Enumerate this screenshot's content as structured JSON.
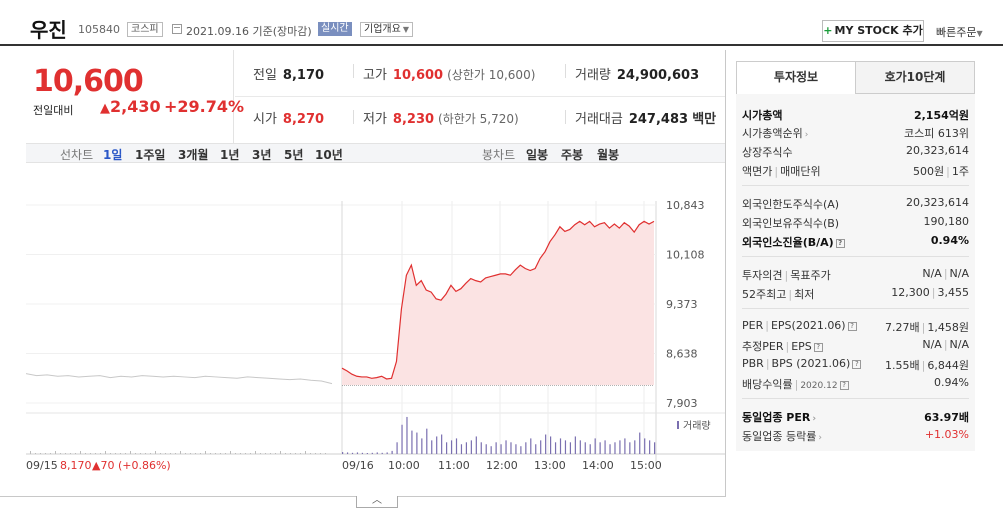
{
  "header": {
    "stock_name": "우진",
    "stock_code": "105840",
    "market": "코스피",
    "date_text": "2021.09.16 기준(장마감)",
    "realtime": "실시간",
    "company_overview": "기업개요",
    "mystock_label": "MY STOCK 추가",
    "quick_order": "빠른주문"
  },
  "price": {
    "current": "10,600",
    "change_label": "전일대비",
    "change_value": "2,430",
    "change_pct": "+29.74%"
  },
  "summary": {
    "prev_close_label": "전일",
    "prev_close": "8,170",
    "high_label": "고가",
    "high": "10,600",
    "upper_limit": "(상한가 10,600)",
    "volume_label": "거래량",
    "volume": "24,900,603",
    "open_label": "시가",
    "open": "8,270",
    "low_label": "저가",
    "low": "8,230",
    "lower_limit": "(하한가 5,720)",
    "amount_label": "거래대금",
    "amount": "247,483",
    "amount_unit": "백만"
  },
  "chart_tabs": {
    "line_label": "선차트",
    "periods": [
      "1일",
      "1주일",
      "3개월",
      "1년",
      "3년",
      "5년",
      "10년"
    ],
    "candle_label": "봉차트",
    "candles": [
      "일봉",
      "주봉",
      "월봉"
    ]
  },
  "colors": {
    "up": "#e03030",
    "fill": "#fbe3e3",
    "prev_line": "#c8c8c8",
    "volume": "#7a6fb0",
    "active_tab": "#2a57c7"
  },
  "chart_data": {
    "type": "line",
    "yticks": [
      "10,843",
      "10,108",
      "9,373",
      "8,638",
      "7,903"
    ],
    "ylim": [
      7903,
      10843
    ],
    "prev_close_line": 8170,
    "xticks_left": [
      "09/15"
    ],
    "xticks_right": [
      "09/16",
      "10:00",
      "11:00",
      "12:00",
      "13:00",
      "14:00",
      "15:00"
    ],
    "prev_day_label": "09/15",
    "prev_day_price": "8,170",
    "prev_day_change": "▲70 (+0.86%)",
    "volume_label": "거래량",
    "prev_series": [
      8340,
      8310,
      8320,
      8300,
      8310,
      8290,
      8300,
      8310,
      8280,
      8300,
      8290,
      8310,
      8300,
      8290,
      8300,
      8290,
      8280,
      8300,
      8290,
      8280,
      8270,
      8290,
      8280,
      8270,
      8260,
      8250,
      8260,
      8240,
      8230,
      8190
    ],
    "today_series": [
      8420,
      8380,
      8330,
      8300,
      8290,
      8290,
      8270,
      8280,
      8300,
      8260,
      8270,
      8520,
      9300,
      9800,
      9950,
      9650,
      9720,
      9580,
      9550,
      9450,
      9430,
      9520,
      9650,
      9560,
      9600,
      9680,
      9750,
      9720,
      9700,
      9760,
      9780,
      9800,
      9820,
      9820,
      9800,
      9880,
      9950,
      9900,
      9870,
      9900,
      10050,
      10150,
      10300,
      10400,
      10520,
      10450,
      10480,
      10550,
      10600,
      10550,
      10600,
      10520,
      10560,
      10580,
      10500,
      10560,
      10500,
      10580,
      10530,
      10440,
      10550,
      10600,
      10560,
      10600
    ],
    "today_volume": [
      0.05,
      0.04,
      0.03,
      0.04,
      0.03,
      0.02,
      0.03,
      0.04,
      0.03,
      0.04,
      0.08,
      0.3,
      0.75,
      0.95,
      0.6,
      0.55,
      0.4,
      0.65,
      0.35,
      0.45,
      0.5,
      0.3,
      0.35,
      0.4,
      0.25,
      0.3,
      0.35,
      0.45,
      0.3,
      0.25,
      0.2,
      0.3,
      0.25,
      0.35,
      0.3,
      0.25,
      0.2,
      0.3,
      0.4,
      0.25,
      0.35,
      0.5,
      0.45,
      0.3,
      0.4,
      0.35,
      0.3,
      0.45,
      0.35,
      0.3,
      0.25,
      0.4,
      0.3,
      0.35,
      0.25,
      0.3,
      0.35,
      0.4,
      0.3,
      0.35,
      0.55,
      0.4,
      0.35,
      0.3
    ]
  },
  "info_panel": {
    "tab_active": "투자정보",
    "tab_other": "호가10단계",
    "market_cap_label": "시가총액",
    "market_cap": "2,154억원",
    "rank_label": "시가총액순위",
    "rank": "코스피 613위",
    "shares_label": "상장주식수",
    "shares": "20,323,614",
    "par_label": "액면가",
    "trade_unit_label": "매매단위",
    "par": "500원",
    "trade_unit": "1주",
    "foreign_limit_label": "외국인한도주식수(A)",
    "foreign_limit": "20,323,614",
    "foreign_hold_label": "외국인보유주식수(B)",
    "foreign_hold": "190,180",
    "foreign_rate_label": "외국인소진율(B/A)",
    "foreign_rate": "0.94%",
    "opinion_label": "투자의견",
    "target_label": "목표주가",
    "opinion": "N/A",
    "target": "N/A",
    "week52_label": "52주최고",
    "week52_low_label": "최저",
    "week52_high": "12,300",
    "week52_low": "3,455",
    "per_label": "PER",
    "eps_label": "EPS",
    "eps_date": "(2021.06)",
    "per": "7.27배",
    "eps": "1,458원",
    "est_per_label": "추정PER",
    "est_eps_label": "EPS",
    "est_per": "N/A",
    "est_eps": "N/A",
    "pbr_label": "PBR",
    "bps_label": "BPS",
    "bps_date": "(2021.06)",
    "pbr": "1.55배",
    "bps": "6,844원",
    "div_label": "배당수익률",
    "div_date": "2020.12",
    "div": "0.94%",
    "sector_per_label": "동일업종 PER",
    "sector_per": "63.97배",
    "sector_change_label": "동일업종 등락률",
    "sector_change": "+1.03%"
  }
}
